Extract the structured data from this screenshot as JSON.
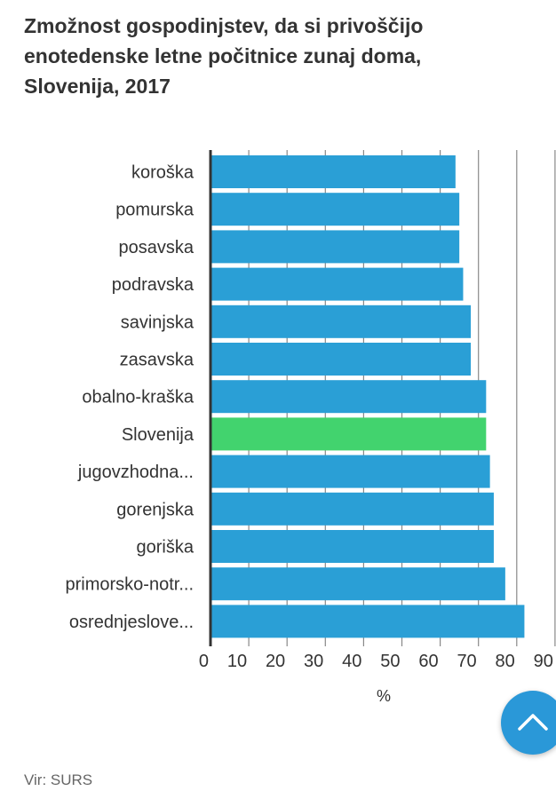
{
  "title_lines": [
    "Zmožnost gospodinjstev, da si privoščijo",
    "enotedenske letne počitnice zunaj doma,",
    "Slovenija, 2017"
  ],
  "source": "Vir: SURS",
  "colors": {
    "bar": "#2a9fd6",
    "highlight": "#42d36e",
    "axis": "#333333",
    "grid": "#888888"
  },
  "icons": {
    "scroll_top": "chevron-up-icon"
  },
  "chart_data": {
    "type": "bar",
    "orientation": "horizontal",
    "title": "Zmožnost gospodinjstev, da si privoščijo enotedenske letne počitnice zunaj doma, Slovenija, 2017",
    "categories": [
      "koroška",
      "pomurska",
      "posavska",
      "podravska",
      "savinjska",
      "zasavska",
      "obalno-kraška",
      "Slovenija",
      "jugovzhodna...",
      "gorenjska",
      "goriška",
      "primorsko-notr...",
      "osrednjeslove..."
    ],
    "values": [
      64,
      65,
      65,
      66,
      68,
      68,
      72,
      72,
      73,
      74,
      74,
      77,
      82
    ],
    "highlight": "Slovenija",
    "xlabel": "%",
    "ylabel": "",
    "xlim": [
      0,
      90
    ],
    "xticks": [
      0,
      10,
      20,
      30,
      40,
      50,
      60,
      70,
      80,
      90
    ],
    "grid": true,
    "legend": "none"
  }
}
